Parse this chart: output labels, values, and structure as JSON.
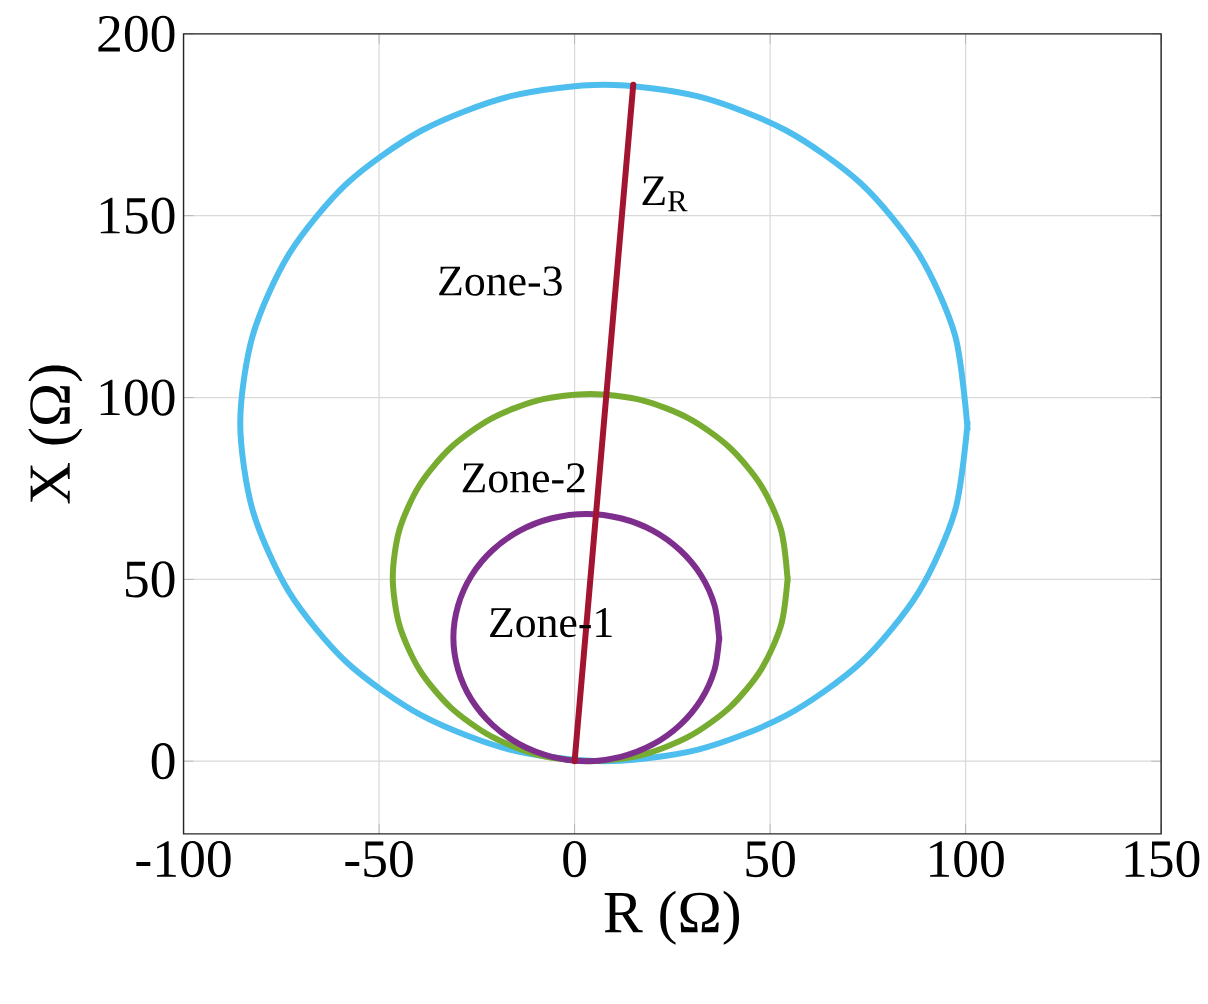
{
  "chart_data": {
    "type": "line",
    "xlabel": "R (Ω)",
    "ylabel": "X (Ω)",
    "xlim": [
      -100,
      150
    ],
    "ylim": [
      -20,
      200
    ],
    "xticks": [
      -100,
      -50,
      0,
      50,
      100,
      150
    ],
    "yticks": [
      0,
      50,
      100,
      150,
      200
    ],
    "grid": true,
    "marker": "none",
    "line_style": "solid",
    "series": [
      {
        "color": "#4dbeee",
        "x": [
          100.5,
          97.3,
          88.0,
          73.3,
          54.0,
          31.6,
          7.5,
          -16.6,
          -39.0,
          -58.3,
          -73.0,
          -82.3,
          -85.5,
          -82.3,
          -73.0,
          -58.3,
          -39.0,
          -16.6,
          7.5,
          31.6,
          54.0,
          73.3,
          88.0,
          97.3,
          100.5
        ],
        "values": [
          91.4,
          117.1,
          139.5,
          158.8,
          173.5,
          182.8,
          186,
          182.8,
          173.5,
          158.8,
          139.5,
          117.1,
          93,
          68.9,
          46.5,
          27.2,
          12.5,
          3.2,
          0,
          3.2,
          12.5,
          27.2,
          46.5,
          68.9,
          93
        ]
      },
      {
        "color": "#77ac30",
        "x": [
          54.5,
          52.8,
          47.7,
          39.7,
          29.3,
          17.1,
          4,
          -9.1,
          -21.3,
          -31.7,
          -39.7,
          -44.8,
          -46.5,
          -44.8,
          -39.7,
          -31.7,
          -21.3,
          -9.1,
          4,
          17.1,
          29.3,
          39.7,
          47.7,
          52.8,
          54.5
        ],
        "values": [
          49.6,
          63.6,
          75.8,
          86.2,
          94.2,
          99.3,
          101,
          99.3,
          94.2,
          86.2,
          75.8,
          63.6,
          50.5,
          37.4,
          25.2,
          14.8,
          6.8,
          1.7,
          0,
          1.7,
          6.8,
          14.8,
          25.2,
          37.4,
          50.5
        ]
      },
      {
        "color": "#7e2f8e",
        "x": [
          37,
          35.8,
          32.4,
          27,
          20,
          11.8,
          3,
          -5.8,
          -14,
          -21,
          -26.4,
          -29.8,
          -31,
          -29.8,
          -26.4,
          -21,
          -14,
          -5.8,
          3,
          11.8,
          20,
          27,
          32.4,
          35.8,
          37
        ],
        "values": [
          33.4,
          42.8,
          51,
          58,
          63.4,
          66.8,
          68,
          66.8,
          63.4,
          58,
          51,
          42.8,
          34,
          25.2,
          17,
          10,
          4.6,
          1.2,
          0,
          1.2,
          4.6,
          10,
          17,
          25.2,
          34
        ]
      },
      {
        "color": "#a2142f",
        "x": [
          0,
          15
        ],
        "values": [
          0,
          186
        ]
      }
    ],
    "annotations": [
      "Zone-3",
      "Zone-2",
      "Zone-1",
      "Z$_{R}$"
    ]
  }
}
